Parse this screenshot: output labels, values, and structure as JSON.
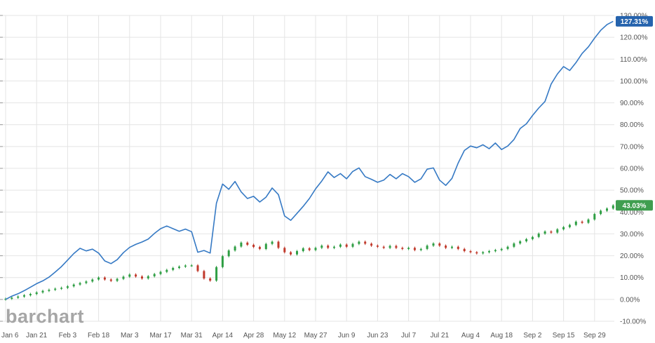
{
  "watermark": "barchart",
  "colors": {
    "background": "#ffffff",
    "grid": "#e4e4e4",
    "axis_text": "#555555",
    "line_blue": "#3579c4",
    "badge_blue": "#2563ad",
    "candle_up": "#2f9e44",
    "candle_down": "#c0392b",
    "badge_green": "#3f9e4f",
    "badge_text": "#ffffff",
    "watermark_gray": "#a6a6a6"
  },
  "chart_data": {
    "type": "line+candlestick",
    "title": "",
    "xlabel": "",
    "ylabel": "",
    "grid": true,
    "legend": "none",
    "ylim": [
      -10,
      130
    ],
    "day_step": 2,
    "x_tick_days": [
      0,
      10,
      20,
      30,
      40,
      50,
      60,
      70,
      80,
      90,
      100,
      110,
      120,
      130,
      140,
      150,
      160,
      170,
      180,
      190
    ],
    "x_tick_labels": [
      "Jan 6",
      "Jan 21",
      "Feb 3",
      "Feb 18",
      "Mar 3",
      "Mar 17",
      "Mar 31",
      "Apr 14",
      "Apr 28",
      "May 12",
      "May 27",
      "Jun 9",
      "Jun 23",
      "Jul 7",
      "Jul 21",
      "Aug 4",
      "Aug 18",
      "Sep 2",
      "Sep 15",
      "Sep 29"
    ],
    "y_ticks": [
      130,
      120,
      110,
      100,
      90,
      80,
      70,
      60,
      50,
      40,
      30,
      20,
      10,
      0,
      -10
    ],
    "y_tick_labels": [
      "130.00%",
      "120.00%",
      "110.00%",
      "100.00%",
      "90.00%",
      "80.00%",
      "70.00%",
      "60.00%",
      "50.00%",
      "40.00%",
      "30.00%",
      "20.00%",
      "10.00%",
      "0.00%",
      "-10.00%"
    ],
    "series": [
      {
        "name": "percent-change-line",
        "type": "line",
        "color": "#3579c4",
        "final_label": "127.31%",
        "badge_bg": "#2563ad",
        "values": [
          0.0,
          1.5,
          2.6,
          4.0,
          5.6,
          7.2,
          8.5,
          10.2,
          12.5,
          15.0,
          18.0,
          21.0,
          23.4,
          22.2,
          23.0,
          21.2,
          17.6,
          16.4,
          18.2,
          21.4,
          23.8,
          25.2,
          26.3,
          27.6,
          30.2,
          32.4,
          33.6,
          32.4,
          31.2,
          32.2,
          31.0,
          21.6,
          22.4,
          21.2,
          44.0,
          52.8,
          50.4,
          54.0,
          49.2,
          46.2,
          47.2,
          44.6,
          46.8,
          51.0,
          48.0,
          38.2,
          36.2,
          39.4,
          42.6,
          46.2,
          50.6,
          54.2,
          58.4,
          55.8,
          57.6,
          55.2,
          58.6,
          60.2,
          56.2,
          55.0,
          53.6,
          54.6,
          57.2,
          55.2,
          57.6,
          56.2,
          53.6,
          55.2,
          59.6,
          60.2,
          54.6,
          52.2,
          55.4,
          62.4,
          68.2,
          70.2,
          69.4,
          70.8,
          69.0,
          71.6,
          68.6,
          70.2,
          73.2,
          78.2,
          80.4,
          84.2,
          87.6,
          90.6,
          98.6,
          103.2,
          106.6,
          104.8,
          108.4,
          112.6,
          115.6,
          119.6,
          123.2,
          125.8,
          127.31
        ]
      },
      {
        "name": "percent-change-candles",
        "type": "candlestick",
        "up_color": "#2f9e44",
        "down_color": "#c0392b",
        "final_label": "43.03%",
        "badge_bg": "#3f9e4f",
        "closes": [
          0.3,
          0.8,
          1.3,
          1.9,
          2.5,
          3.2,
          3.9,
          4.4,
          4.9,
          5.3,
          6.0,
          6.8,
          7.5,
          8.2,
          9.1,
          10.0,
          9.1,
          8.5,
          9.4,
          10.4,
          11.4,
          10.5,
          9.6,
          10.6,
          11.6,
          12.6,
          13.5,
          14.4,
          15.0,
          15.5,
          15.6,
          13.0,
          9.6,
          8.6,
          14.8,
          19.8,
          22.4,
          24.2,
          26.0,
          25.0,
          24.0,
          23.1,
          25.4,
          26.4,
          23.6,
          21.6,
          20.6,
          22.1,
          23.4,
          22.6,
          23.6,
          24.6,
          23.6,
          24.1,
          25.1,
          24.1,
          25.4,
          26.4,
          25.5,
          24.6,
          24.1,
          23.6,
          24.5,
          23.6,
          23.1,
          23.6,
          22.6,
          23.1,
          24.6,
          25.6,
          24.6,
          23.6,
          24.1,
          23.1,
          22.1,
          21.6,
          21.1,
          21.6,
          22.1,
          22.6,
          23.1,
          24.1,
          25.6,
          26.6,
          27.6,
          28.6,
          30.1,
          31.1,
          30.6,
          32.1,
          33.1,
          34.1,
          35.6,
          35.1,
          36.6,
          39.1,
          40.6,
          41.6,
          43.03
        ]
      }
    ]
  }
}
